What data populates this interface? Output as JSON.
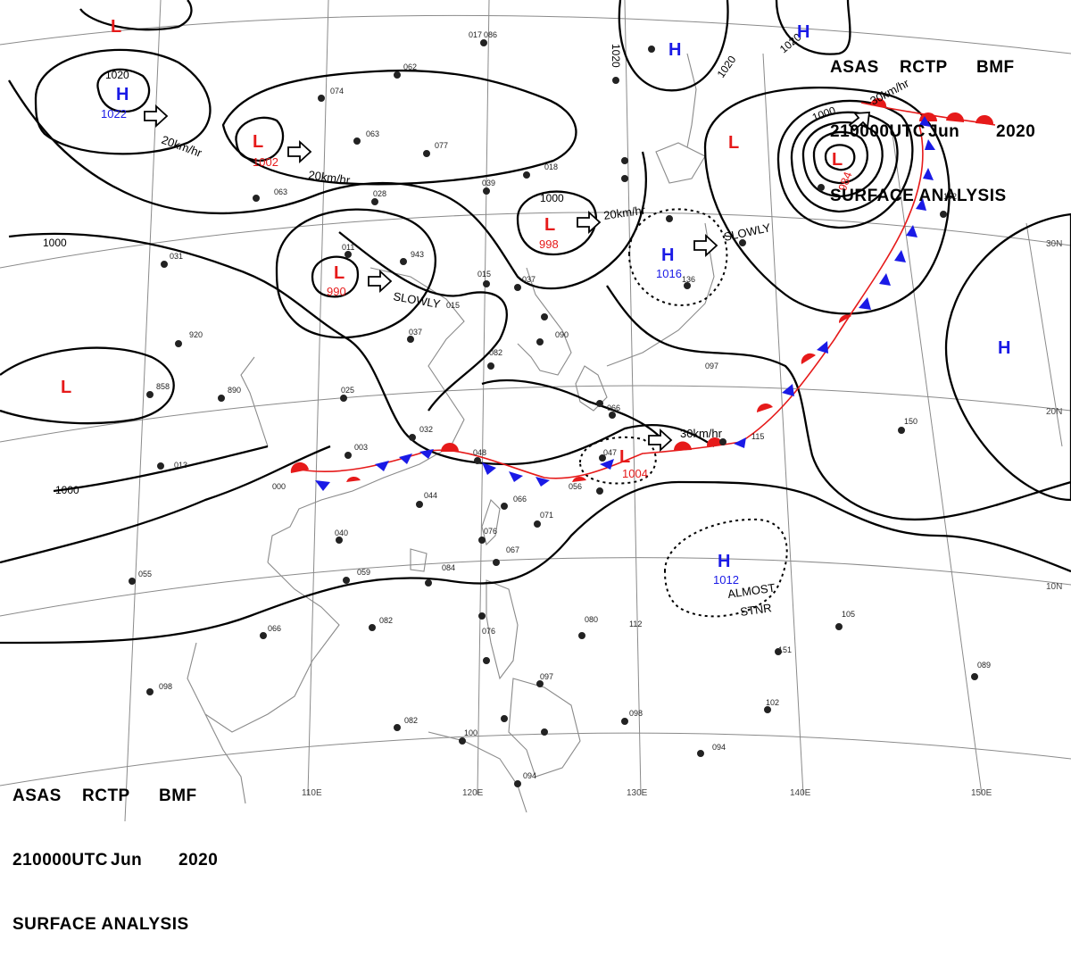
{
  "header": {
    "agency": "ASAS",
    "station": "RCTP",
    "code": "BMF",
    "valid_time": "210000UTC",
    "month": "Jun",
    "year": "2020",
    "product": "SURFACE ANALYSIS"
  },
  "longitude_labels": [
    "110E",
    "120E",
    "130E",
    "140E",
    "150E"
  ],
  "latitude_labels": [
    "30N",
    "20N",
    "10N"
  ],
  "isobar_labels": [
    "1020",
    "1020",
    "1020",
    "1020",
    "1000",
    "1000",
    "1000",
    "1000"
  ],
  "pressure_centers": [
    {
      "type": "H",
      "value": "1022",
      "color": "#1a1ae6"
    },
    {
      "type": "L",
      "value": "1002",
      "color": "#e61a1a"
    },
    {
      "type": "L",
      "value": "990",
      "color": "#e61a1a"
    },
    {
      "type": "L",
      "value": "998",
      "color": "#e61a1a"
    },
    {
      "type": "H",
      "value": "1016",
      "color": "#1a1ae6"
    },
    {
      "type": "L",
      "value": "984",
      "color": "#e61a1a"
    },
    {
      "type": "H",
      "value": "1012",
      "color": "#1a1ae6"
    },
    {
      "type": "L",
      "value": "1004",
      "color": "#e61a1a"
    },
    {
      "type": "H",
      "value": "",
      "color": "#1a1ae6"
    },
    {
      "type": "H",
      "value": "",
      "color": "#1a1ae6"
    },
    {
      "type": "H",
      "value": "",
      "color": "#1a1ae6"
    },
    {
      "type": "L",
      "value": "",
      "color": "#e61a1a"
    },
    {
      "type": "L",
      "value": "",
      "color": "#e61a1a"
    },
    {
      "type": "L",
      "value": "",
      "color": "#e61a1a"
    }
  ],
  "movement_labels": [
    "20km/hr",
    "20km/hr",
    "20km/hr",
    "SLOWLY",
    "SLOWLY",
    "30km/hr",
    "30km/hr",
    "ALMOST",
    "STNR"
  ],
  "station_labels": [
    "017",
    "086",
    "062",
    "074",
    "063",
    "077",
    "028",
    "063",
    "039",
    "018",
    "015",
    "943",
    "011",
    "037",
    "015",
    "031",
    "920",
    "858",
    "890",
    "025",
    "037",
    "082",
    "090",
    "097",
    "003",
    "032",
    "048",
    "013",
    "000",
    "044",
    "066",
    "071",
    "076",
    "067",
    "084",
    "059",
    "082",
    "040",
    "055",
    "066",
    "098",
    "080",
    "112",
    "076",
    "097",
    "082",
    "100",
    "094",
    "098",
    "094",
    "115",
    "150",
    "105",
    "089",
    "151",
    "102",
    "152",
    "136",
    "047",
    "066",
    "056"
  ],
  "colors": {
    "low": "#e61a1a",
    "high": "#1a1ae6",
    "warm_front": "#e61a1a",
    "cold_front": "#1a1ae6",
    "isobar": "#000000",
    "grid": "#8a8a8a",
    "coast": "#8a8a8a"
  }
}
